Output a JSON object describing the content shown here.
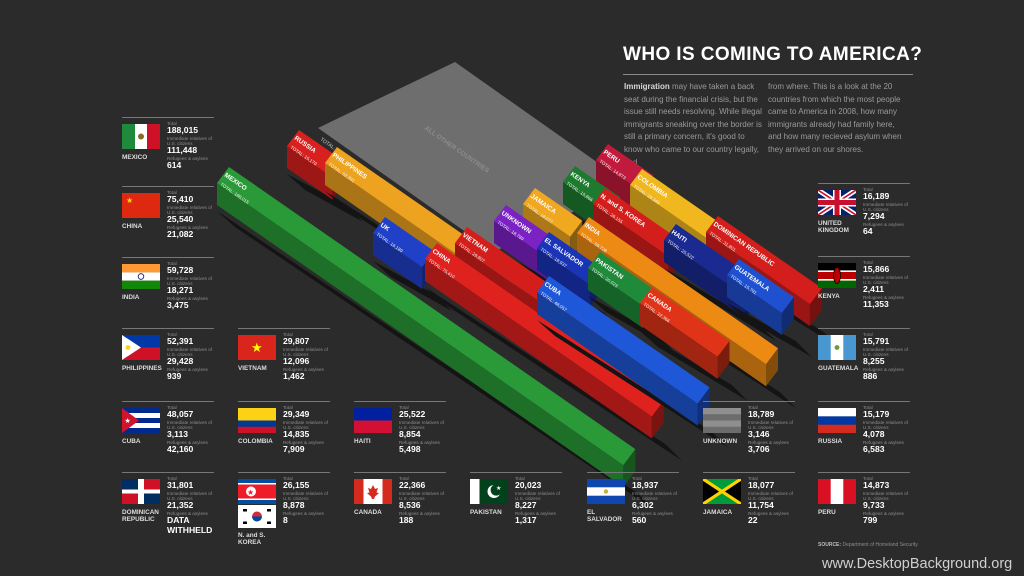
{
  "title": "WHO IS COMING TO AMERICA?",
  "intro": {
    "lead": "Immigration",
    "col1": "may have taken a back seat during the financial crisis, but the issue still needs resolving. While illegal immigrants sneaking over the border is still a primary concern, it's good to know who came to our country legally, and",
    "col2": "from where. This is a look at the 20 countries from which the most people came to America in 2008, how many immigrants already had family here, and how many recieved asylum when they arrived on our shores."
  },
  "labels": {
    "total": "Total",
    "relatives": "Immediate relatives of U.S. citizens",
    "refugees": "Refugees & asylees"
  },
  "source": {
    "label": "SOURCE:",
    "text": "Department of Homeland Security"
  },
  "watermark": "www.DesktopBackground.org",
  "colors": {
    "background": "#2b2b2b",
    "accent_green": "#2e9e3a",
    "accent_red": "#e0221f",
    "accent_orange": "#f0a020"
  },
  "cards": [
    {
      "name": "MEXICO",
      "flag": "mexico-flag",
      "total": "188,015",
      "relatives": "111,448",
      "refugees": "614"
    },
    {
      "name": "CHINA",
      "flag": "china-flag",
      "total": "75,410",
      "relatives": "25,540",
      "refugees": "21,082"
    },
    {
      "name": "INDIA",
      "flag": "india-flag",
      "total": "59,728",
      "relatives": "18,271",
      "refugees": "3,475"
    },
    {
      "name": "PHILIPPINES",
      "flag": "philippines-flag",
      "total": "52,391",
      "relatives": "29,428",
      "refugees": "939"
    },
    {
      "name": "CUBA",
      "flag": "cuba-flag",
      "total": "48,057",
      "relatives": "3,113",
      "refugees": "42,160"
    },
    {
      "name": "DOMINICAN REPUBLIC",
      "flag": "dominican-republic-flag",
      "total": "31,801",
      "relatives": "21,352",
      "refugees": "DATA WITHHELD"
    },
    {
      "name": "VIETNAM",
      "flag": "vietnam-flag",
      "total": "29,807",
      "relatives": "12,096",
      "refugees": "1,462"
    },
    {
      "name": "COLOMBIA",
      "flag": "colombia-flag",
      "total": "29,349",
      "relatives": "14,835",
      "refugees": "7,909"
    },
    {
      "name": "N. and S. KOREA",
      "flag": "north-korea-flag",
      "flag2": "south-korea-flag",
      "total": "26,155",
      "relatives": "8,878",
      "refugees": "8"
    },
    {
      "name": "HAITI",
      "flag": "haiti-flag",
      "total": "25,522",
      "relatives": "8,854",
      "refugees": "5,498"
    },
    {
      "name": "CANADA",
      "flag": "canada-flag",
      "total": "22,366",
      "relatives": "8,536",
      "refugees": "188"
    },
    {
      "name": "PAKISTAN",
      "flag": "pakistan-flag",
      "total": "20,023",
      "relatives": "8,227",
      "refugees": "1,317"
    },
    {
      "name": "EL SALVADOR",
      "flag": "el-salvador-flag",
      "total": "18,937",
      "relatives": "6,302",
      "refugees": "560"
    },
    {
      "name": "UNKNOWN",
      "flag": "unknown-flag",
      "total": "18,789",
      "relatives": "3,146",
      "refugees": "3,706"
    },
    {
      "name": "JAMAICA",
      "flag": "jamaica-flag",
      "total": "18,077",
      "relatives": "11,754",
      "refugees": "22"
    },
    {
      "name": "UNITED KINGDOM",
      "flag": "united-kingdom-flag",
      "total": "16,189",
      "relatives": "7,294",
      "refugees": "64"
    },
    {
      "name": "KENYA",
      "flag": "kenya-flag",
      "total": "15,866",
      "relatives": "2,411",
      "refugees": "11,353"
    },
    {
      "name": "GUATEMALA",
      "flag": "guatemala-flag",
      "total": "15,791",
      "relatives": "8,255",
      "refugees": "886"
    },
    {
      "name": "RUSSIA",
      "flag": "russia-flag",
      "total": "15,179",
      "relatives": "4,078",
      "refugees": "6,583"
    },
    {
      "name": "PERU",
      "flag": "peru-flag",
      "total": "14,873",
      "relatives": "9,733",
      "refugees": "799"
    }
  ],
  "bars": [
    {
      "name": "ALL OTHER COUNTRIES",
      "total_label": "TOTAL: 364,881",
      "color": "#6e6e6e"
    },
    {
      "name": "MEXICO",
      "total_label": "TOTAL: 188,015",
      "color": "#2a9a38"
    },
    {
      "name": "RUSSIA",
      "total_label": "TOTAL: 15,179",
      "color": "#d8201e"
    },
    {
      "name": "PHILIPPINES",
      "total_label": "TOTAL: 52,391",
      "color": "#eea320"
    },
    {
      "name": "UK",
      "total_label": "TOTAL: 16,189",
      "color": "#2040c8"
    },
    {
      "name": "CHINA",
      "total_label": "TOTAL: 75,410",
      "color": "#e0221f"
    },
    {
      "name": "VIETNAM",
      "total_label": "TOTAL: 29,807",
      "color": "#d41e1c"
    },
    {
      "name": "UNKNOWN",
      "total_label": "TOTAL: 18,789",
      "color": "#7b22c4"
    },
    {
      "name": "CUBA",
      "total_label": "TOTAL: 48,057",
      "color": "#1e58d8"
    },
    {
      "name": "EL SALVADOR",
      "total_label": "TOTAL: 18,937",
      "color": "#1a34b8"
    },
    {
      "name": "JAMAICA",
      "total_label": "TOTAL: 18,077",
      "color": "#f0a820"
    },
    {
      "name": "INDIA",
      "total_label": "TOTAL: 59,728",
      "color": "#ec8a14"
    },
    {
      "name": "PAKISTAN",
      "total_label": "TOTAL: 20,023",
      "color": "#1e8a3a"
    },
    {
      "name": "KENYA",
      "total_label": "TOTAL: 15,866",
      "color": "#1e7a2e"
    },
    {
      "name": "N. and S. KOREA",
      "total_label": "TOTAL: 26,155",
      "color": "#d41e1c"
    },
    {
      "name": "CANADA",
      "total_label": "TOTAL: 22,366",
      "color": "#e03418"
    },
    {
      "name": "PERU",
      "total_label": "TOTAL: 14,873",
      "color": "#c01a3c"
    },
    {
      "name": "COLOMBIA",
      "total_label": "TOTAL: 29,349",
      "color": "#f0b81e"
    },
    {
      "name": "HAITI",
      "total_label": "TOTAL: 25,522",
      "color": "#1a2a90"
    },
    {
      "name": "GUATEMALA",
      "total_label": "TOTAL: 15,791",
      "color": "#1e50d0"
    },
    {
      "name": "DOMINICAN REPUBLIC",
      "total_label": "TOTAL: 31,801",
      "color": "#d41e1c"
    }
  ]
}
